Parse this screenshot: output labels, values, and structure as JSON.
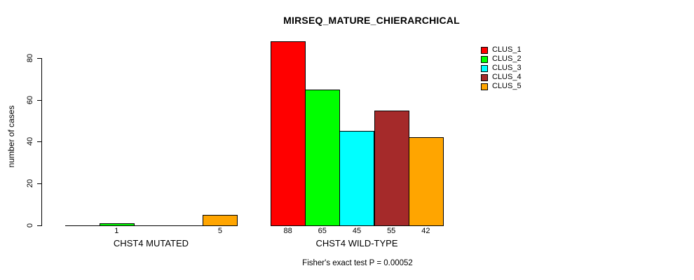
{
  "title": "MIRSEQ_MATURE_CHIERARCHICAL",
  "annotation": "Fisher's exact test P = 0.00052",
  "y_axis": {
    "label": "number of cases",
    "ticks": [
      0,
      20,
      40,
      60,
      80
    ]
  },
  "chart_data": {
    "type": "bar",
    "title": "MIRSEQ_MATURE_CHIERARCHICAL",
    "xlabel": "",
    "ylabel": "number of cases",
    "ylim": [
      0,
      88
    ],
    "yticks": [
      0,
      20,
      40,
      60,
      80
    ],
    "grid": false,
    "legend_position": "top-right",
    "categories": [
      "CHST4 MUTATED",
      "CHST4 WILD-TYPE"
    ],
    "series": [
      {
        "name": "CLUS_1",
        "color": "#FF0000",
        "values": [
          0,
          88
        ]
      },
      {
        "name": "CLUS_2",
        "color": "#00FF00",
        "values": [
          1,
          65
        ]
      },
      {
        "name": "CLUS_3",
        "color": "#00FFFF",
        "values": [
          0,
          45
        ]
      },
      {
        "name": "CLUS_4",
        "color": "#A52A2A",
        "values": [
          0,
          55
        ]
      },
      {
        "name": "CLUS_5",
        "color": "#FFA500",
        "values": [
          5,
          42
        ]
      }
    ],
    "bar_value_labels": "values shown under each bar; zero-height bars unlabeled",
    "annotation": "Fisher's exact test P = 0.00052"
  }
}
